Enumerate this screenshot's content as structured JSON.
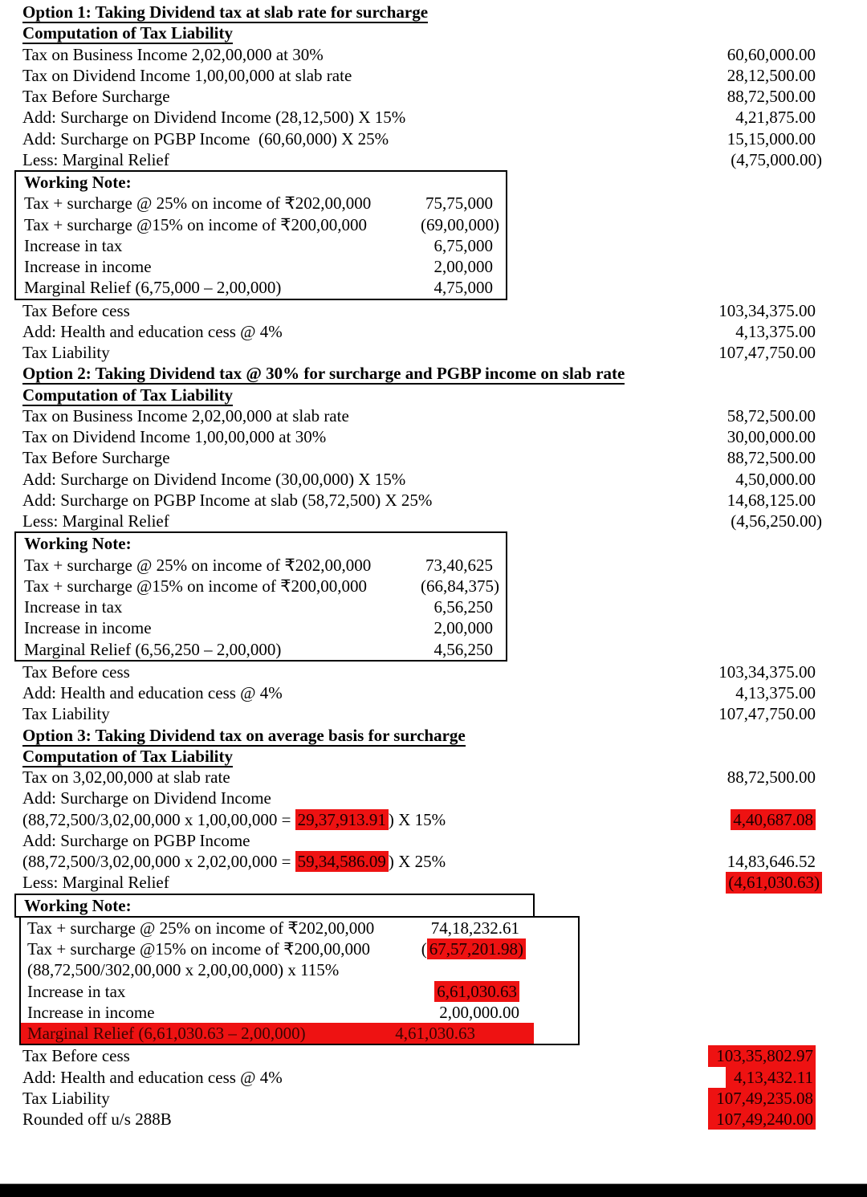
{
  "colors": {
    "highlight_red": "#ee1212",
    "text": "#000000",
    "bottom_bar": "#000000"
  },
  "blocks": [
    {
      "type": "heading",
      "text": "Option 1: Taking Dividend tax at slab rate for surcharge"
    },
    {
      "type": "heading",
      "text": "Computation of Tax Liability"
    },
    {
      "type": "line",
      "label": "Tax on Business Income 2,02,00,000 at 30%",
      "value": "60,60,000.00"
    },
    {
      "type": "line",
      "label": "Tax on Dividend Income 1,00,00,000 at slab rate",
      "value": "28,12,500.00"
    },
    {
      "type": "line",
      "label": "Tax Before Surcharge",
      "value": "88,72,500.00"
    },
    {
      "type": "line",
      "label": "Add: Surcharge on Dividend Income (28,12,500) X 15%",
      "value": "4,21,875.00"
    },
    {
      "type": "line",
      "label": "Add: Surcharge on PGBP Income  (60,60,000) X 25%",
      "value": "15,15,000.00"
    },
    {
      "type": "line",
      "label": "Less: Marginal Relief",
      "value": "(4,75,000.00)"
    },
    {
      "type": "box",
      "variant": "wn12",
      "title": "Working Note:",
      "rows": [
        {
          "label": "Tax + surcharge @ 25% on income of ₹202,00,000",
          "value": "75,75,000"
        },
        {
          "label": "Tax + surcharge @15% on income of ₹200,00,000",
          "value": "(69,00,000)"
        },
        {
          "label": "Increase in tax",
          "value": "6,75,000"
        },
        {
          "label": "Increase in income",
          "value": "2,00,000"
        },
        {
          "label": "Marginal Relief (6,75,000 – 2,00,000)",
          "value": "4,75,000"
        }
      ]
    },
    {
      "type": "line",
      "label": "Tax Before cess",
      "value": "103,34,375.00"
    },
    {
      "type": "line",
      "label": "Add: Health and education cess @ 4%",
      "value": "4,13,375.00"
    },
    {
      "type": "line",
      "label": "Tax Liability",
      "value": "107,47,750.00"
    },
    {
      "type": "heading",
      "text": "Option 2: Taking Dividend tax @ 30% for surcharge and PGBP income on slab rate"
    },
    {
      "type": "heading",
      "text": "Computation of Tax Liability"
    },
    {
      "type": "line",
      "label": "Tax on Business Income 2,02,00,000 at slab rate",
      "value": "58,72,500.00"
    },
    {
      "type": "line",
      "label": "Tax on Dividend Income 1,00,00,000 at 30%",
      "value": "30,00,000.00"
    },
    {
      "type": "line",
      "label": "Tax Before Surcharge",
      "value": "88,72,500.00"
    },
    {
      "type": "line",
      "label": "Add: Surcharge on Dividend Income (30,00,000) X 15%",
      "value": "4,50,000.00"
    },
    {
      "type": "line",
      "label": "Add: Surcharge on PGBP Income at slab (58,72,500) X 25%",
      "value": "14,68,125.00"
    },
    {
      "type": "line",
      "label": "Less: Marginal Relief",
      "value": "(4,56,250.00)"
    },
    {
      "type": "box",
      "variant": "wn12",
      "title": "Working Note:",
      "rows": [
        {
          "label": "Tax + surcharge @ 25% on income of ₹202,00,000",
          "value": "73,40,625"
        },
        {
          "label": "Tax + surcharge @15% on income of ₹200,00,000",
          "value": "(66,84,375)"
        },
        {
          "label": "Increase in tax",
          "value": "6,56,250"
        },
        {
          "label": "Increase in income",
          "value": "2,00,000"
        },
        {
          "label": "Marginal Relief (6,56,250 – 2,00,000)",
          "value": "4,56,250"
        }
      ]
    },
    {
      "type": "line",
      "label": "Tax Before cess",
      "value": "103,34,375.00"
    },
    {
      "type": "line",
      "label": "Add: Health and education cess @ 4%",
      "value": "4,13,375.00"
    },
    {
      "type": "line",
      "label": "Tax Liability",
      "value": "107,47,750.00"
    },
    {
      "type": "heading",
      "text": "Option 3: Taking Dividend tax on average basis for surcharge"
    },
    {
      "type": "heading",
      "text": "Computation of Tax Liability"
    },
    {
      "type": "line",
      "label": "Tax on 3,02,00,000 at slab rate",
      "value": "88,72,500.00"
    },
    {
      "type": "line",
      "label": "Add: Surcharge on Dividend Income"
    },
    {
      "type": "line",
      "label_parts": [
        {
          "t": "(88,72,500/3,02,00,000 x 1,00,00,000 = "
        },
        {
          "t": "29,37,913.91",
          "hl": true
        },
        {
          "t": ") X 15%"
        }
      ],
      "value": "4,40,687.08",
      "value_hl": true
    },
    {
      "type": "line",
      "label": "Add: Surcharge on PGBP Income"
    },
    {
      "type": "line",
      "label_parts": [
        {
          "t": "(88,72,500/3,02,00,000 x 2,02,00,000 = "
        },
        {
          "t": "59,34,586.09",
          "hl": true
        },
        {
          "t": ") X 25%"
        }
      ],
      "value": "14,83,646.52"
    },
    {
      "type": "line",
      "label": "Less: Marginal Relief",
      "value": "(4,61,030.63)",
      "value_hl": true
    },
    {
      "type": "box-header",
      "variant": "wn3-header",
      "title": "Working Note:"
    },
    {
      "type": "box",
      "variant": "wn3-body",
      "rows": [
        {
          "label": "Tax + surcharge @ 25% on income of ₹202,00,000",
          "value": "74,18,232.61"
        },
        {
          "label": "Tax + surcharge @15% on income of ₹200,00,000",
          "value_parts": [
            {
              "t": "("
            },
            {
              "t": "67,57,201.98)",
              "hl": true
            }
          ]
        },
        {
          "label": "(88,72,500/302,00,000 x 2,00,00,000) x 115%"
        },
        {
          "label": "Increase in tax",
          "value": "6,61,030.63",
          "value_hl": true
        },
        {
          "label": "Increase in income",
          "value": "2,00,000.00"
        },
        {
          "label": "Marginal Relief (6,61,030.63 – 2,00,000)",
          "value": "4,61,030.63",
          "row_hl": true
        }
      ]
    },
    {
      "type": "line",
      "label": "Tax Before cess",
      "value": "103,35,802.97",
      "value_hl": true,
      "hl_style": "wide"
    },
    {
      "type": "line",
      "label": "Add: Health and education cess @ 4%",
      "value": "4,13,432.11",
      "value_hl": true,
      "hl_style": "narrow"
    },
    {
      "type": "line",
      "label": "Tax Liability",
      "value": "107,49,235.08",
      "value_hl": true,
      "hl_style": "wide"
    },
    {
      "type": "line",
      "label": "Rounded off u/s 288B",
      "value": "107,49,240.00",
      "value_hl": true,
      "hl_style": "wide"
    }
  ]
}
